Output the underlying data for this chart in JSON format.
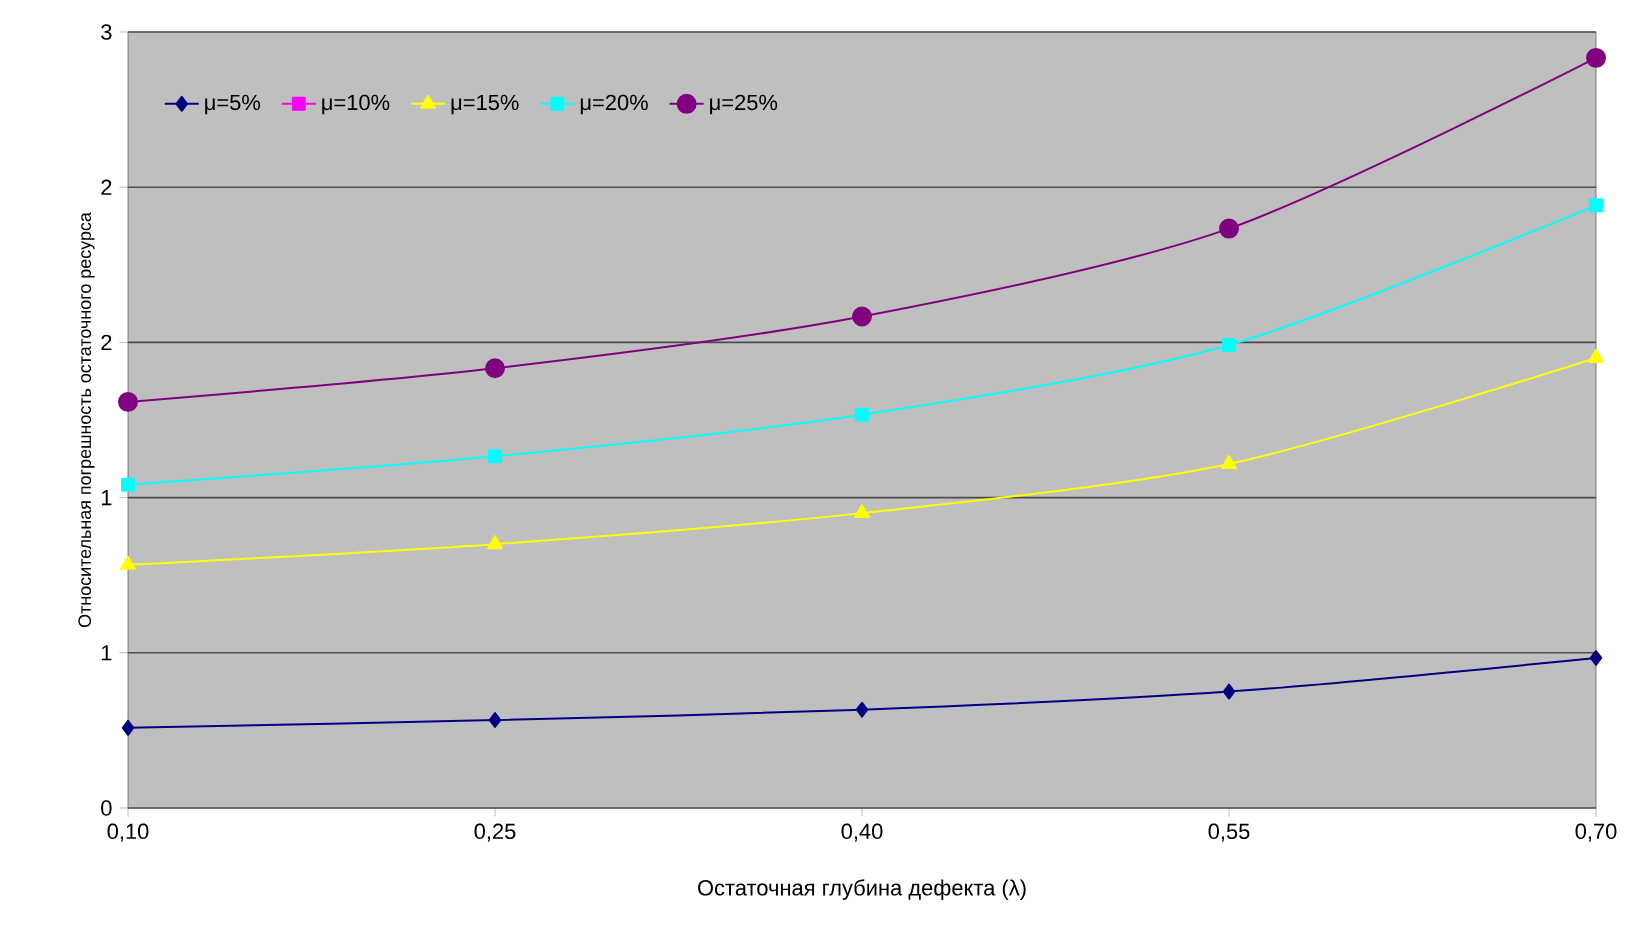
{
  "chart_data": {
    "type": "line",
    "xlabel": "Остаточная глубина дефекта (λ)",
    "ylabel": "Относительная погрешность остаточного ресурса",
    "x": [
      0.1,
      0.25,
      0.4,
      0.55,
      0.7
    ],
    "xlim": [
      0.1,
      0.7
    ],
    "xticks": [
      {
        "value": 0.1,
        "label": "0,10"
      },
      {
        "value": 0.25,
        "label": "0,25"
      },
      {
        "value": 0.4,
        "label": "0,40"
      },
      {
        "value": 0.55,
        "label": "0,55"
      },
      {
        "value": 0.7,
        "label": "0,70"
      }
    ],
    "ylim": [
      0,
      3
    ],
    "yticks": [
      0,
      {
        "value": 0.6,
        "label": "1"
      },
      {
        "value": 1.2,
        "label": "1"
      },
      {
        "value": 1.8,
        "label": "2"
      },
      {
        "value": 2.4,
        "label": "2"
      },
      3
    ],
    "grid": "y",
    "legend": "top left",
    "series": [
      {
        "name": "μ=5%",
        "color": "#000080",
        "marker": "diamond",
        "values": [
          0.31,
          0.34,
          0.38,
          0.45,
          0.58
        ]
      },
      {
        "name": "μ=10%",
        "color": "#ff00ff",
        "marker": "square",
        "values": [
          null,
          null,
          null,
          null,
          null
        ]
      },
      {
        "name": "μ=15%",
        "color": "#ffff00",
        "marker": "triangle",
        "values": [
          0.94,
          1.02,
          1.14,
          1.33,
          1.74
        ]
      },
      {
        "name": "μ=20%",
        "color": "#00ffff",
        "marker": "square",
        "values": [
          1.25,
          1.36,
          1.52,
          1.79,
          2.33
        ]
      },
      {
        "name": "μ=25%",
        "color": "#800080",
        "marker": "circle",
        "values": [
          1.57,
          1.7,
          1.9,
          2.24,
          2.9
        ]
      }
    ]
  }
}
